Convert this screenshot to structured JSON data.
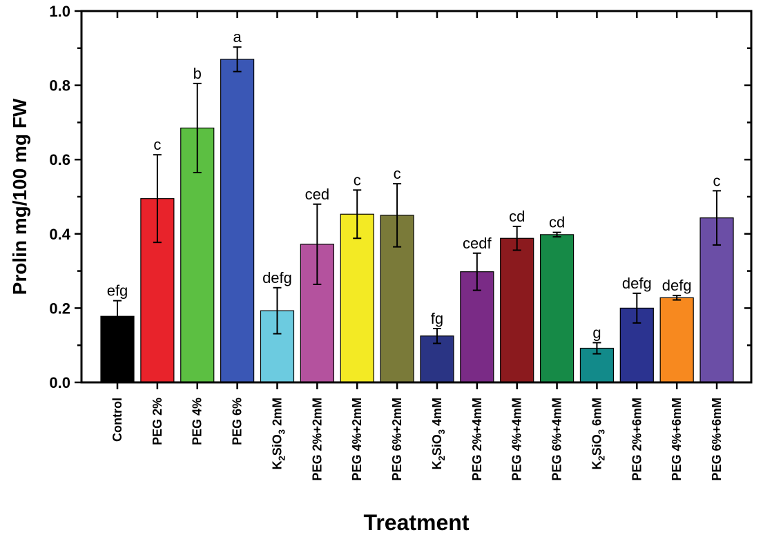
{
  "chart_data": {
    "type": "bar",
    "title": "",
    "xlabel": "Treatment",
    "ylabel": "Prolin mg/100 mg FW",
    "ylim": [
      0,
      1.0
    ],
    "yticks": [
      "0.0",
      "0.2",
      "0.4",
      "0.6",
      "0.8",
      "1.0"
    ],
    "ytick_values": [
      0,
      0.2,
      0.4,
      0.6,
      0.8,
      1.0
    ],
    "categories": [
      "Control",
      "PEG 2%",
      "PEG 4%",
      "PEG 6%",
      "K2SiO3 2mM",
      "PEG 2%+2mM",
      "PEG 4%+2mM",
      "PEG 6%+2mM",
      "K2SiO3 4mM",
      "PEG 2%+4mM",
      "PEG 4%+4mM",
      "PEG 6%+4mM",
      "K2SiO3 6mM",
      "PEG 2%+6mM",
      "PEG 4%+6mM",
      "PEG 6%+6mM"
    ],
    "values": [
      0.178,
      0.495,
      0.685,
      0.87,
      0.193,
      0.372,
      0.453,
      0.45,
      0.125,
      0.298,
      0.388,
      0.398,
      0.092,
      0.2,
      0.228,
      0.443
    ],
    "errors": [
      0.042,
      0.118,
      0.12,
      0.033,
      0.062,
      0.108,
      0.065,
      0.085,
      0.02,
      0.05,
      0.032,
      0.006,
      0.015,
      0.04,
      0.006,
      0.073
    ],
    "significance": [
      "efg",
      "c",
      "b",
      "a",
      "defg",
      "ced",
      "c",
      "c",
      "fg",
      "cedf",
      "cd",
      "cd",
      "g",
      "defg",
      "defg",
      "c"
    ],
    "colors": [
      "#000000",
      "#e8232b",
      "#5cbf42",
      "#3a57b5",
      "#6ccbe0",
      "#b4529e",
      "#f3ea24",
      "#7a7a39",
      "#2a3484",
      "#7a2b86",
      "#8b1a1e",
      "#168a47",
      "#128a8a",
      "#2b3390",
      "#f7891f",
      "#6b4ea6"
    ]
  }
}
